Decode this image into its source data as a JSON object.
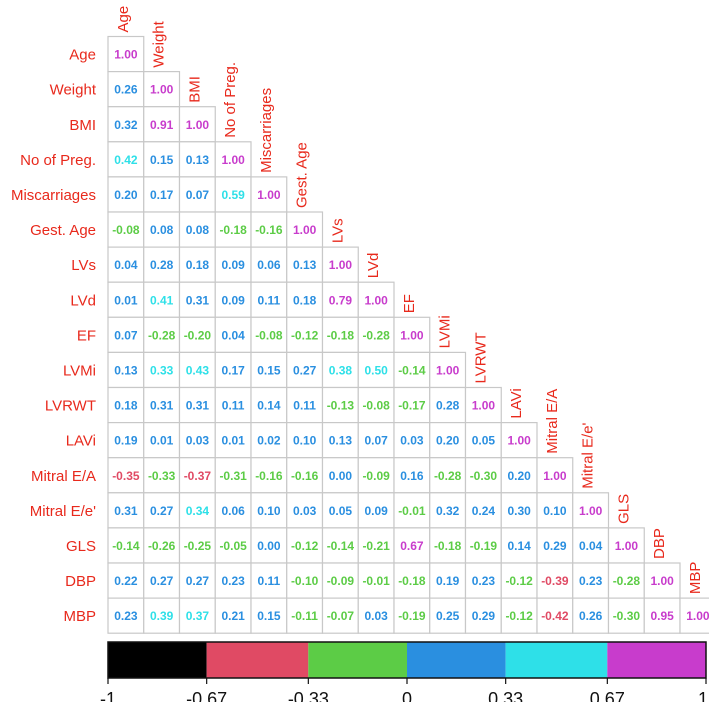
{
  "chart_data": {
    "type": "heatmap",
    "variables": [
      "Age",
      "Weight",
      "BMI",
      "No of Preg.",
      "Miscarriages",
      "Gest. Age",
      "LVs",
      "LVd",
      "EF",
      "LVMi",
      "LVRWT",
      "LAVi",
      "Mitral E/A",
      "Mitral E/e'",
      "GLS",
      "DBP",
      "MBP"
    ],
    "values": [
      [
        "1.00"
      ],
      [
        "0.26",
        "1.00"
      ],
      [
        "0.32",
        "0.91",
        "1.00"
      ],
      [
        "0.42",
        "0.15",
        "0.13",
        "1.00"
      ],
      [
        "0.20",
        "0.17",
        "0.07",
        "0.59",
        "1.00"
      ],
      [
        "-0.08",
        "0.08",
        "0.08",
        "-0.18",
        "-0.16",
        "1.00"
      ],
      [
        "0.04",
        "0.28",
        "0.18",
        "0.09",
        "0.06",
        "0.13",
        "1.00"
      ],
      [
        "0.01",
        "0.41",
        "0.31",
        "0.09",
        "0.11",
        "0.18",
        "0.79",
        "1.00"
      ],
      [
        "0.07",
        "-0.28",
        "-0.20",
        "0.04",
        "-0.08",
        "-0.12",
        "-0.18",
        "-0.28",
        "1.00"
      ],
      [
        "0.13",
        "0.33",
        "0.43",
        "0.17",
        "0.15",
        "0.27",
        "0.38",
        "0.50",
        "-0.14",
        "1.00"
      ],
      [
        "0.18",
        "0.31",
        "0.31",
        "0.11",
        "0.14",
        "0.11",
        "-0.13",
        "-0.08",
        "-0.17",
        "0.28",
        "1.00"
      ],
      [
        "0.19",
        "0.01",
        "0.03",
        "0.01",
        "0.02",
        "0.10",
        "0.13",
        "0.07",
        "0.03",
        "0.20",
        "0.05",
        "1.00"
      ],
      [
        "-0.35",
        "-0.33",
        "-0.37",
        "-0.31",
        "-0.16",
        "-0.16",
        "0.00",
        "-0.09",
        "0.16",
        "-0.28",
        "-0.30",
        "0.20",
        "1.00"
      ],
      [
        "0.31",
        "0.27",
        "0.34",
        "0.06",
        "0.10",
        "0.03",
        "0.05",
        "0.09",
        "-0.01",
        "0.32",
        "0.24",
        "0.30",
        "0.10",
        "1.00"
      ],
      [
        "-0.14",
        "-0.26",
        "-0.25",
        "-0.05",
        "0.00",
        "-0.12",
        "-0.14",
        "-0.21",
        "0.67",
        "-0.18",
        "-0.19",
        "0.14",
        "0.29",
        "0.04",
        "1.00"
      ],
      [
        "0.22",
        "0.27",
        "0.27",
        "0.23",
        "0.11",
        "-0.10",
        "-0.09",
        "-0.01",
        "-0.18",
        "0.19",
        "0.23",
        "-0.12",
        "-0.39",
        "0.23",
        "-0.28",
        "1.00"
      ],
      [
        "0.23",
        "0.39",
        "0.37",
        "0.21",
        "0.15",
        "-0.11",
        "-0.07",
        "0.03",
        "-0.19",
        "0.25",
        "0.29",
        "-0.12",
        "-0.42",
        "0.26",
        "-0.30",
        "0.95",
        "1.00"
      ]
    ],
    "colorbar": {
      "range": [
        -1,
        1
      ],
      "ticks": [
        "-1",
        "-0.67",
        "-0.33",
        "0",
        "0.33",
        "0.67",
        "1"
      ],
      "bins": [
        {
          "from": -1.0,
          "to": -0.67,
          "color": "#000000"
        },
        {
          "from": -0.67,
          "to": -0.33,
          "color": "#e04a64"
        },
        {
          "from": -0.33,
          "to": 0.0,
          "color": "#5ccc46"
        },
        {
          "from": 0.0,
          "to": 0.33,
          "color": "#2a8fe0"
        },
        {
          "from": 0.33,
          "to": 0.67,
          "color": "#2ee0e8"
        },
        {
          "from": 0.67,
          "to": 1.0,
          "color": "#c83ccc"
        }
      ]
    },
    "colors": {
      "label": "#e8291c",
      "cell_border": "#c8c8c8",
      "tick": "#111111"
    }
  }
}
